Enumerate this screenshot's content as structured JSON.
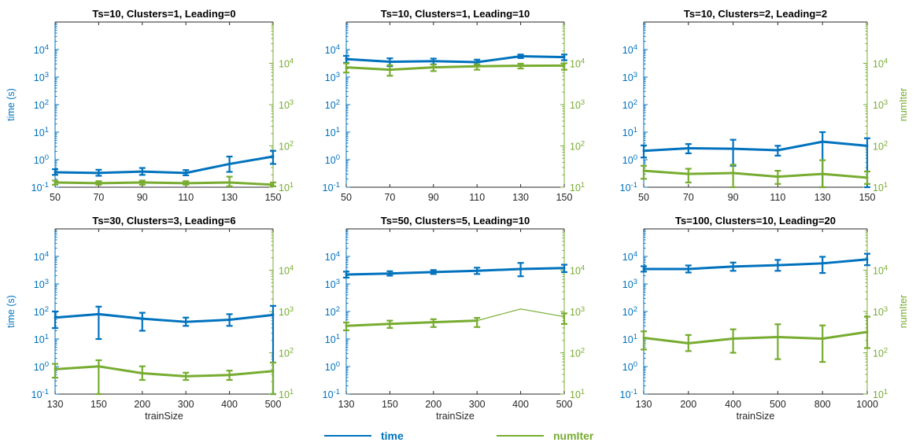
{
  "figure": {
    "colors": {
      "time": "#0072BD",
      "numIter": "#77AC30"
    },
    "legend": [
      {
        "key": "time",
        "label": "time"
      },
      {
        "key": "numIter",
        "label": "numIter"
      }
    ]
  },
  "chart_data": [
    {
      "type": "line",
      "title": "Ts=10, Clusters=1, Leading=0",
      "xlabel": "",
      "ylabel_left": "time (s)",
      "ylabel_right": "",
      "categories": [
        "50",
        "70",
        "90",
        "110",
        "130",
        "150"
      ],
      "y_scale": "log",
      "ylim_left": [
        0.1,
        100000
      ],
      "ylim_right": [
        10,
        100000
      ],
      "left_ticks": [
        "10^-1",
        "10^0",
        "10^1",
        "10^2",
        "10^3",
        "10^4"
      ],
      "right_ticks": [
        "10^1",
        "10^2",
        "10^3",
        "10^4"
      ],
      "series": [
        {
          "name": "time",
          "axis": "left",
          "values": [
            0.35,
            0.33,
            0.37,
            0.33,
            0.7,
            1.3
          ],
          "err_low": [
            0.28,
            0.26,
            0.28,
            0.27,
            0.36,
            0.7
          ],
          "err_high": [
            0.45,
            0.43,
            0.5,
            0.42,
            1.3,
            2.1
          ]
        },
        {
          "name": "numIter",
          "axis": "right",
          "values": [
            13,
            12.5,
            13,
            12.5,
            13,
            11.5
          ],
          "err_low": [
            11.5,
            11.5,
            11.5,
            11.5,
            10.5,
            10.5
          ],
          "err_high": [
            14.5,
            14,
            14.5,
            14,
            18,
            13
          ]
        }
      ]
    },
    {
      "type": "line",
      "title": "Ts=10, Clusters=1, Leading=10",
      "xlabel": "",
      "ylabel_left": "",
      "ylabel_right": "",
      "categories": [
        "50",
        "70",
        "90",
        "110",
        "130",
        "150"
      ],
      "y_scale": "log",
      "ylim_left": [
        0.1,
        100000
      ],
      "ylim_right": [
        10,
        100000
      ],
      "left_ticks": [
        "10^-1",
        "10^0",
        "10^1",
        "10^2",
        "10^3",
        "10^4"
      ],
      "right_ticks": [
        "10^1",
        "10^2",
        "10^3",
        "10^4"
      ],
      "series": [
        {
          "name": "time",
          "axis": "left",
          "values": [
            4500,
            3600,
            3800,
            3500,
            5700,
            5300
          ],
          "err_low": [
            3300,
            2500,
            2900,
            2800,
            4900,
            4100
          ],
          "err_high": [
            5900,
            4800,
            4700,
            4300,
            6600,
            6600
          ]
        },
        {
          "name": "numIter",
          "axis": "right",
          "values": [
            8000,
            7000,
            8000,
            8500,
            8700,
            8800
          ],
          "err_low": [
            6000,
            5000,
            6500,
            7000,
            7500,
            7000
          ],
          "err_high": [
            10000,
            9000,
            9300,
            9500,
            9800,
            10000
          ]
        }
      ]
    },
    {
      "type": "line",
      "title": "Ts=10, Clusters=2, Leading=2",
      "xlabel": "",
      "ylabel_left": "",
      "ylabel_right": "numIter",
      "categories": [
        "50",
        "70",
        "90",
        "110",
        "130",
        "150"
      ],
      "y_scale": "log",
      "ylim_left": [
        0.1,
        100000
      ],
      "ylim_right": [
        10,
        100000
      ],
      "left_ticks": [
        "10^-1",
        "10^0",
        "10^1",
        "10^2",
        "10^3",
        "10^4"
      ],
      "right_ticks": [
        "10^1",
        "10^2",
        "10^3",
        "10^4"
      ],
      "series": [
        {
          "name": "time",
          "axis": "left",
          "values": [
            2.1,
            2.6,
            2.5,
            2.2,
            4.5,
            3.2
          ],
          "err_low": [
            1.2,
            1.7,
            0.6,
            1.4,
            0.1,
            0.1
          ],
          "err_high": [
            3.3,
            3.7,
            5.3,
            3.2,
            10,
            6
          ]
        },
        {
          "name": "numIter",
          "axis": "right",
          "values": [
            25,
            21,
            22,
            18,
            21,
            17
          ],
          "err_low": [
            16,
            13,
            10,
            12,
            10,
            12
          ],
          "err_high": [
            33,
            28,
            35,
            25,
            45,
            24
          ]
        }
      ]
    },
    {
      "type": "line",
      "title": "Ts=30, Clusters=3, Leading=6",
      "xlabel": "trainSize",
      "ylabel_left": "time (s)",
      "ylabel_right": "",
      "categories": [
        "130",
        "150",
        "200",
        "300",
        "400",
        "500"
      ],
      "y_scale": "log",
      "ylim_left": [
        0.1,
        100000
      ],
      "ylim_right": [
        10,
        100000
      ],
      "left_ticks": [
        "10^-1",
        "10^0",
        "10^1",
        "10^2",
        "10^3",
        "10^4"
      ],
      "right_ticks": [
        "10^1",
        "10^2",
        "10^3",
        "10^4"
      ],
      "series": [
        {
          "name": "time",
          "axis": "left",
          "values": [
            60,
            80,
            55,
            42,
            50,
            75
          ],
          "err_low": [
            25,
            10,
            20,
            30,
            30,
            0.1
          ],
          "err_high": [
            100,
            150,
            90,
            60,
            80,
            160
          ]
        },
        {
          "name": "numIter",
          "axis": "right",
          "values": [
            40,
            47,
            32,
            27,
            29,
            36
          ],
          "err_low": [
            25,
            10,
            22,
            22,
            22,
            10
          ],
          "err_high": [
            54,
            66,
            47,
            33,
            37,
            58
          ]
        }
      ]
    },
    {
      "type": "line",
      "title": "Ts=50, Clusters=5, Leading=10",
      "xlabel": "trainSize",
      "ylabel_left": "",
      "ylabel_right": "",
      "categories": [
        "130",
        "150",
        "200",
        "300",
        "400",
        "500"
      ],
      "y_scale": "log",
      "ylim_left": [
        0.1,
        100000
      ],
      "ylim_right": [
        10,
        100000
      ],
      "left_ticks": [
        "10^-1",
        "10^0",
        "10^1",
        "10^2",
        "10^3",
        "10^4"
      ],
      "right_ticks": [
        "10^1",
        "10^2",
        "10^3",
        "10^4"
      ],
      "series": [
        {
          "name": "time",
          "axis": "left",
          "values": [
            2200,
            2400,
            2700,
            3000,
            3500,
            3800
          ],
          "err_low": [
            1700,
            2000,
            2300,
            2300,
            1900,
            2700
          ],
          "err_high": [
            2800,
            2900,
            3200,
            3900,
            5800,
            5000
          ]
        },
        {
          "name": "numIter",
          "axis": "right",
          "values": [
            450,
            500,
            550,
            600,
            1150,
            750
          ],
          "err_low": [
            350,
            400,
            420,
            420,
            1150,
            500
          ],
          "err_high": [
            540,
            600,
            650,
            700,
            1150,
            900
          ]
        }
      ]
    },
    {
      "type": "line",
      "title": "Ts=100, Clusters=10, Leading=20",
      "xlabel": "trainSize",
      "ylabel_left": "",
      "ylabel_right": "numIter",
      "categories": [
        "130",
        "200",
        "400",
        "500",
        "800",
        "1000"
      ],
      "y_scale": "log",
      "ylim_left": [
        0.1,
        100000
      ],
      "ylim_right": [
        10,
        100000
      ],
      "left_ticks": [
        "10^-1",
        "10^0",
        "10^1",
        "10^2",
        "10^3",
        "10^4"
      ],
      "right_ticks": [
        "10^1",
        "10^2",
        "10^3",
        "10^4"
      ],
      "series": [
        {
          "name": "time",
          "axis": "left",
          "values": [
            3500,
            3500,
            4300,
            4800,
            5600,
            7800
          ],
          "err_low": [
            2800,
            2600,
            3000,
            3000,
            2500,
            4800
          ],
          "err_high": [
            4400,
            4700,
            6000,
            7500,
            9700,
            12500
          ]
        },
        {
          "name": "numIter",
          "axis": "right",
          "values": [
            230,
            170,
            220,
            240,
            220,
            320
          ],
          "err_low": [
            120,
            110,
            100,
            70,
            60,
            130
          ],
          "err_high": [
            330,
            270,
            370,
            490,
            460,
            750
          ]
        }
      ]
    }
  ]
}
